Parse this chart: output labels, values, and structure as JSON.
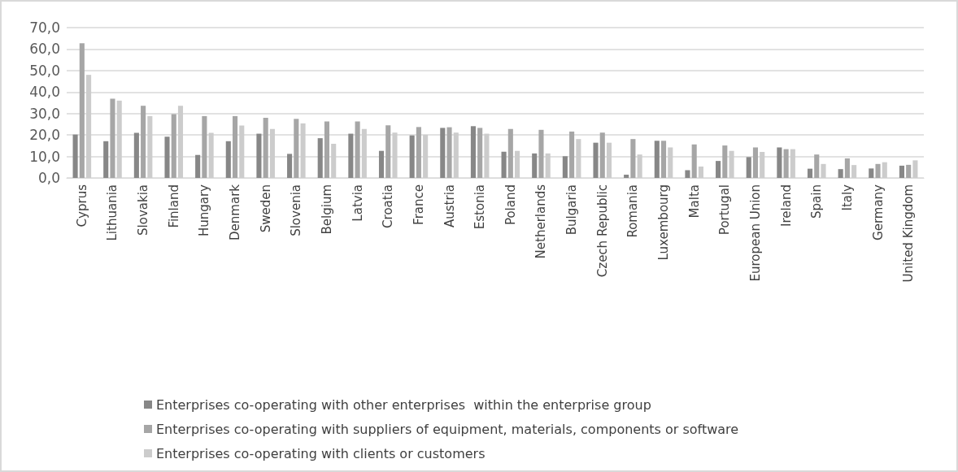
{
  "chart_data": {
    "type": "bar",
    "categories": [
      "Cyprus",
      "Lithuania",
      "Slovakia",
      "Finland",
      "Hungary",
      "Denmark",
      "Sweden",
      "Slovenia",
      "Belgium",
      "Latvia",
      "Croatia",
      "France",
      "Austria",
      "Estonia",
      "Poland",
      "Netherlands",
      "Bulgaria",
      "Czech Republic",
      "Romania",
      "Luxembourg",
      "Malta",
      "Portugal",
      "European Union",
      "Ireland",
      "Spain",
      "Italy",
      "Germany",
      "United Kingdom"
    ],
    "series": [
      {
        "name": "Enterprises co-operating with other enterprises  within the enterprise group",
        "color": "#878787",
        "values": [
          20.2,
          17.1,
          21.0,
          19.2,
          10.7,
          17.1,
          20.6,
          11.2,
          18.5,
          20.6,
          12.6,
          19.8,
          23.3,
          24.1,
          12.2,
          11.4,
          10.1,
          16.4,
          1.5,
          17.3,
          3.6,
          7.9,
          9.7,
          14.2,
          4.3,
          4.1,
          4.4,
          5.7
        ]
      },
      {
        "name": "Enterprises co-operating with suppliers of equipment, materials, components or software",
        "color": "#a6a6a6",
        "values": [
          62.7,
          36.9,
          33.6,
          29.7,
          28.8,
          28.8,
          28.0,
          27.5,
          26.3,
          26.3,
          24.5,
          23.7,
          23.6,
          23.3,
          22.8,
          22.4,
          21.6,
          21.1,
          18.1,
          17.3,
          15.6,
          15.1,
          14.2,
          13.4,
          10.9,
          9.1,
          6.5,
          6.1
        ]
      },
      {
        "name": "Enterprises co-operating with clients or customers",
        "color": "#cccccc",
        "values": [
          48.0,
          36.0,
          28.8,
          33.6,
          21.0,
          24.4,
          22.8,
          25.4,
          15.9,
          22.8,
          21.1,
          20.1,
          21.1,
          20.6,
          12.6,
          11.4,
          18.1,
          16.4,
          10.9,
          14.2,
          5.3,
          12.6,
          12.1,
          13.4,
          6.5,
          6.0,
          7.3,
          8.2
        ]
      }
    ],
    "ylim": [
      0,
      70
    ],
    "yticks": [
      {
        "value": 0,
        "label": "0,0"
      },
      {
        "value": 10,
        "label": "10,0"
      },
      {
        "value": 20,
        "label": "20,0"
      },
      {
        "value": 30,
        "label": "30,0"
      },
      {
        "value": 40,
        "label": "40,0"
      },
      {
        "value": 50,
        "label": "50,0"
      },
      {
        "value": 60,
        "label": "60,0"
      },
      {
        "value": 70,
        "label": "70,0"
      }
    ],
    "grid": "y",
    "legend": "bottom"
  }
}
